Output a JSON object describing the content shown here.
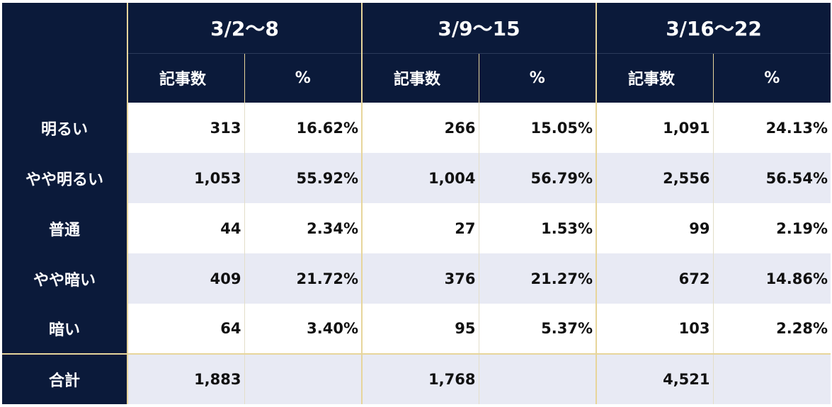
{
  "chart_data": {
    "type": "table",
    "weeks": [
      "3/2〜8",
      "3/9〜15",
      "3/16〜22"
    ],
    "sub_headers": {
      "count": "記事数",
      "percent": "%"
    },
    "rows": [
      {
        "label": "明るい",
        "cells": [
          {
            "count": "313",
            "percent": "16.62%"
          },
          {
            "count": "266",
            "percent": "15.05%"
          },
          {
            "count": "1,091",
            "percent": "24.13%"
          }
        ]
      },
      {
        "label": "やや明るい",
        "cells": [
          {
            "count": "1,053",
            "percent": "55.92%"
          },
          {
            "count": "1,004",
            "percent": "56.79%"
          },
          {
            "count": "2,556",
            "percent": "56.54%"
          }
        ]
      },
      {
        "label": "普通",
        "cells": [
          {
            "count": "44",
            "percent": "2.34%"
          },
          {
            "count": "27",
            "percent": "1.53%"
          },
          {
            "count": "99",
            "percent": "2.19%"
          }
        ]
      },
      {
        "label": "やや暗い",
        "cells": [
          {
            "count": "409",
            "percent": "21.72%"
          },
          {
            "count": "376",
            "percent": "21.27%"
          },
          {
            "count": "672",
            "percent": "14.86%"
          }
        ]
      },
      {
        "label": "暗い",
        "cells": [
          {
            "count": "64",
            "percent": "3.40%"
          },
          {
            "count": "95",
            "percent": "5.37%"
          },
          {
            "count": "103",
            "percent": "2.28%"
          }
        ]
      }
    ],
    "total": {
      "label": "合計",
      "counts": [
        "1,883",
        "1,768",
        "4,521"
      ]
    }
  },
  "colors": {
    "header_bg": "#0b1a3a",
    "header_text": "#ffffff",
    "row_alt_bg": "#e8eaf4",
    "divider": "#e7d59b"
  }
}
